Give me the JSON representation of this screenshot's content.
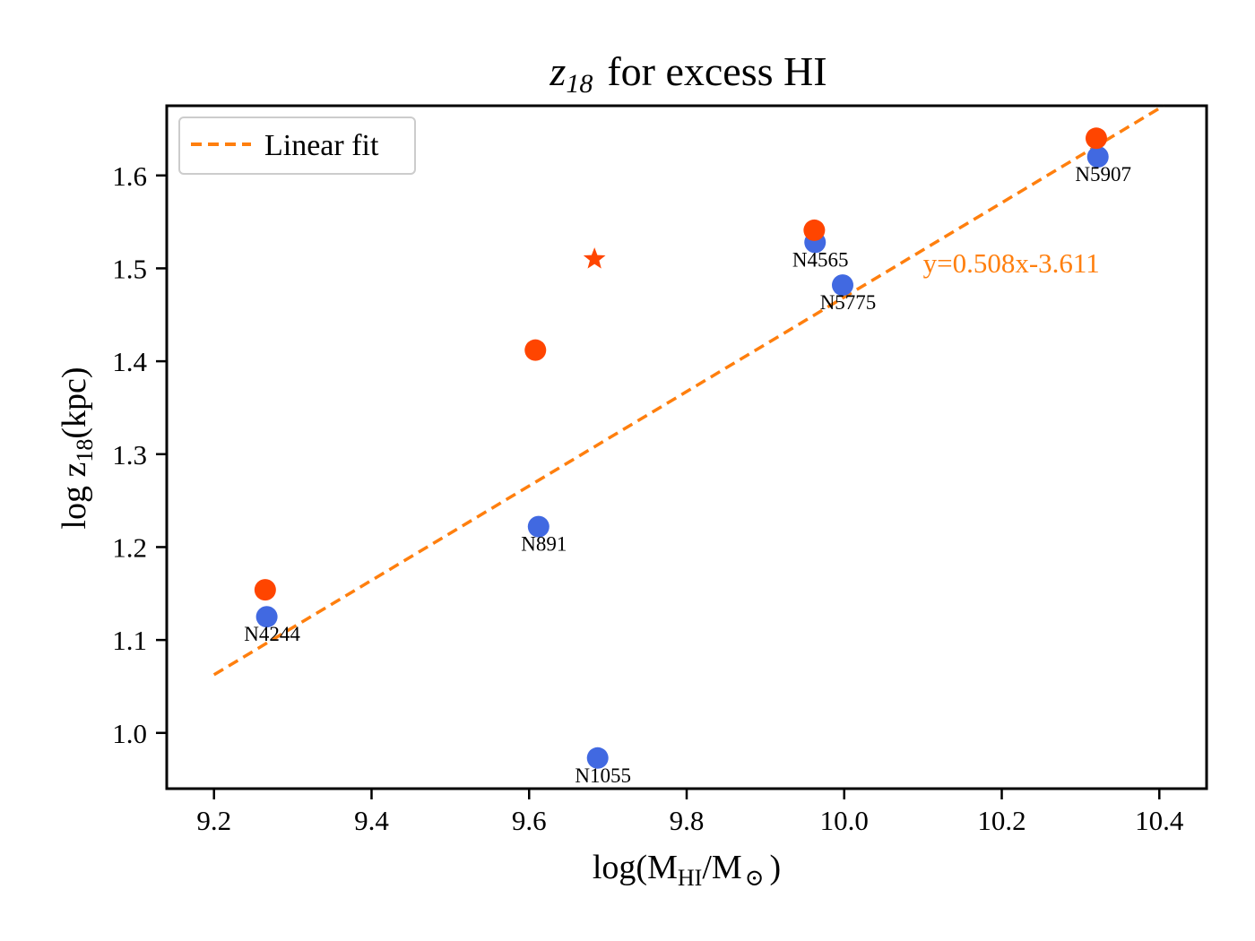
{
  "chart_data": {
    "type": "scatter",
    "title": "z",
    "title_subscript": "18",
    "title_rest": "for excess HI",
    "xlabel": "log(M",
    "xlabel_subscript": "HI",
    "xlabel_rest": "/M",
    "xlabel_symbol": "⊙",
    "xlabel_close": ")",
    "ylabel": "log  z",
    "ylabel_subscript": "18",
    "ylabel_rest": "(kpc)",
    "xlim": [
      9.14,
      10.46
    ],
    "ylim": [
      0.94,
      1.675
    ],
    "xticks": [
      9.2,
      9.4,
      9.6,
      9.8,
      10.0,
      10.2,
      10.4
    ],
    "xtick_labels": [
      "9.2",
      "9.4",
      "9.6",
      "9.8",
      "10.0",
      "10.2",
      "10.4"
    ],
    "yticks": [
      1.0,
      1.1,
      1.2,
      1.3,
      1.4,
      1.5,
      1.6
    ],
    "ytick_labels": [
      "1.0",
      "1.1",
      "1.2",
      "1.3",
      "1.4",
      "1.5",
      "1.6"
    ],
    "grid": false,
    "legend": {
      "position": "top-left",
      "entries": [
        "Linear fit"
      ]
    },
    "series": [
      {
        "name": "blue points",
        "color": "#4169e1",
        "marker": "circle",
        "points": [
          {
            "x": 9.267,
            "y": 1.125,
            "label": "N4244"
          },
          {
            "x": 9.612,
            "y": 1.222,
            "label": "N891"
          },
          {
            "x": 9.687,
            "y": 0.973,
            "label": "N1055"
          },
          {
            "x": 9.963,
            "y": 1.528,
            "label": "N4565"
          },
          {
            "x": 9.998,
            "y": 1.482,
            "label": "N5775"
          },
          {
            "x": 10.322,
            "y": 1.62,
            "label": "N5907"
          }
        ]
      },
      {
        "name": "orange-red points",
        "color": "#ff4500",
        "marker": "circle",
        "points": [
          {
            "x": 9.265,
            "y": 1.154
          },
          {
            "x": 9.608,
            "y": 1.412
          },
          {
            "x": 9.962,
            "y": 1.541
          },
          {
            "x": 10.32,
            "y": 1.64
          }
        ]
      },
      {
        "name": "star",
        "color": "#ff4500",
        "marker": "star",
        "points": [
          {
            "x": 9.683,
            "y": 1.51
          }
        ]
      }
    ],
    "fit": {
      "name": "Linear fit",
      "slope": 0.508,
      "intercept": -3.611,
      "x_range": [
        9.2,
        10.46
      ],
      "color": "#ff7f0e",
      "style": "dashed",
      "equation_text": "y=0.508x-3.611",
      "equation_x": 10.1,
      "equation_y": 1.505
    }
  }
}
